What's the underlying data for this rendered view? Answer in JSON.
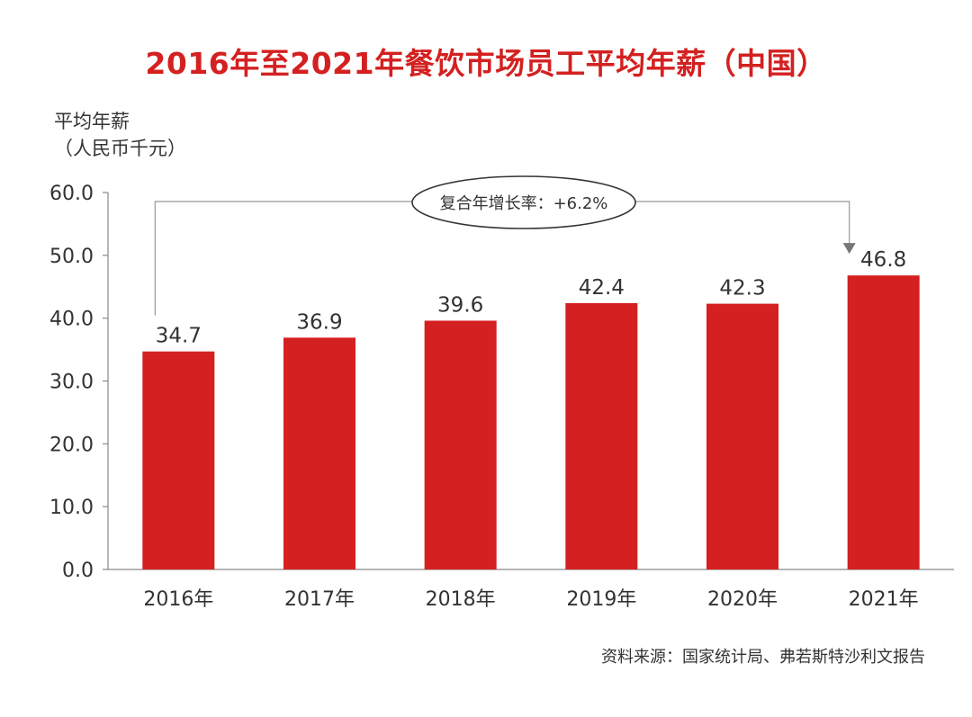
{
  "chart_data": {
    "type": "bar",
    "title": "2016年至2021年餐饮市场员工平均年薪（中国）",
    "ylabel_lines": [
      "平均年薪",
      "（人民币千元）"
    ],
    "xlabel": "",
    "categories": [
      "2016年",
      "2017年",
      "2018年",
      "2019年",
      "2020年",
      "2021年"
    ],
    "values": [
      34.7,
      36.9,
      39.6,
      42.4,
      42.3,
      46.8
    ],
    "data_labels": [
      "34.7",
      "36.9",
      "39.6",
      "42.4",
      "42.3",
      "46.8"
    ],
    "ylim": [
      0,
      60
    ],
    "yticks": [
      "0.0",
      "10.0",
      "20.0",
      "30.0",
      "40.0",
      "50.0",
      "60.0"
    ],
    "annotation": "复合年增长率：+6.2%",
    "source": "资料来源：国家统计局、弗若斯特沙利文报告",
    "grid": false
  },
  "colors": {
    "bar": "#d42020",
    "title": "#d42020",
    "axis": "#888888",
    "text": "#333333"
  }
}
